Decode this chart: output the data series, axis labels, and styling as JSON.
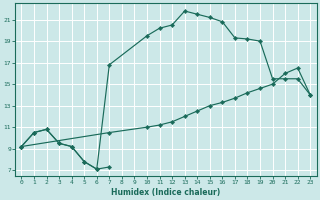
{
  "xlabel": "Humidex (Indice chaleur)",
  "bg_color": "#cce8e8",
  "grid_color": "#ffffff",
  "line_color": "#1a6b5a",
  "xlim": [
    -0.5,
    23.5
  ],
  "ylim": [
    6.5,
    22.5
  ],
  "xticks": [
    0,
    1,
    2,
    3,
    4,
    5,
    6,
    7,
    8,
    9,
    10,
    11,
    12,
    13,
    14,
    15,
    16,
    17,
    18,
    19,
    20,
    21,
    22,
    23
  ],
  "yticks": [
    7,
    9,
    11,
    13,
    15,
    17,
    19,
    21
  ],
  "series": [
    {
      "x": [
        0,
        1,
        2,
        3,
        4,
        5,
        6,
        7
      ],
      "y": [
        9.2,
        10.5,
        10.8,
        9.5,
        9.2,
        7.8,
        7.1,
        7.3
      ]
    },
    {
      "x": [
        0,
        7,
        10,
        11,
        12,
        13,
        14,
        15,
        16,
        17,
        18,
        19,
        20,
        21,
        22,
        23
      ],
      "y": [
        9.2,
        10.5,
        11.0,
        11.2,
        11.5,
        12.0,
        12.5,
        13.0,
        13.3,
        13.7,
        14.2,
        14.6,
        15.0,
        16.0,
        16.5,
        14.0
      ]
    },
    {
      "x": [
        0,
        1,
        2,
        3,
        4,
        5,
        6,
        7,
        10,
        11,
        12,
        13,
        14,
        15,
        16,
        17,
        18,
        19,
        20,
        21,
        22,
        23
      ],
      "y": [
        9.2,
        10.5,
        10.8,
        9.5,
        9.2,
        7.8,
        7.1,
        16.8,
        19.5,
        20.2,
        20.5,
        21.8,
        21.5,
        21.2,
        20.8,
        19.3,
        19.2,
        19.0,
        15.5,
        15.5,
        15.5,
        14.0
      ]
    }
  ]
}
